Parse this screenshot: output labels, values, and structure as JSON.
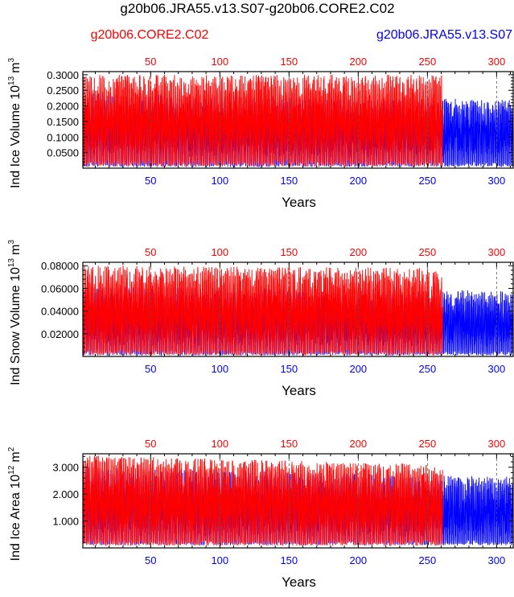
{
  "chart_data": {
    "type": "line",
    "title": "g20b06.JRA55.v13.S07-g20b06.CORE2.C02",
    "legend": {
      "left": {
        "label": "g20b06.CORE2.C02",
        "color": "#ff0000"
      },
      "right": {
        "label": "g20b06.JRA55.v13.S07",
        "color": "#0000ff"
      }
    },
    "series_colors": {
      "core2": "#ff0000",
      "jra55": "#0000ff"
    },
    "x_ticks": [
      50,
      100,
      150,
      200,
      250,
      300
    ],
    "panels": [
      {
        "name": "ind-ice-volume",
        "ylabel_main": "Ind Ice Volume 10",
        "ylabel_exp": "13",
        "ylabel_unit": "m",
        "ylabel_unit_exp": "3",
        "xlabel": "Years",
        "ylim": [
          0,
          0.31
        ],
        "yticks": [
          0.05,
          0.1,
          0.15,
          0.2,
          0.25,
          0.3
        ],
        "ytick_labels": [
          "0.0500",
          "0.1000",
          "0.1500",
          "0.2000",
          "0.2500",
          "0.3000"
        ],
        "grid_x": [
          50,
          100,
          150,
          200,
          250,
          300
        ],
        "series": [
          {
            "name": "g20b06.JRA55.v13.S07",
            "key": "jra55",
            "x_range": [
              1,
              312
            ],
            "min": 0.004,
            "max_early": 0.24,
            "max_late": 0.22
          },
          {
            "name": "g20b06.CORE2.C02",
            "key": "core2",
            "x_range": [
              1,
              261
            ],
            "min": 0.005,
            "max_early": 0.3,
            "max_late": 0.3
          }
        ]
      },
      {
        "name": "ind-snow-volume",
        "ylabel_main": "Ind Snow Volume 10",
        "ylabel_exp": "13",
        "ylabel_unit": "m",
        "ylabel_unit_exp": "3",
        "xlabel": "Years",
        "ylim": [
          0,
          0.083
        ],
        "yticks": [
          0.02,
          0.04,
          0.06,
          0.08
        ],
        "ytick_labels": [
          "0.02000",
          "0.04000",
          "0.06000",
          "0.08000"
        ],
        "grid_x": [
          50,
          100,
          150,
          200,
          250,
          300
        ],
        "series": [
          {
            "name": "g20b06.JRA55.v13.S07",
            "key": "jra55",
            "x_range": [
              1,
              312
            ],
            "min": 0.001,
            "max_early": 0.062,
            "max_late": 0.058
          },
          {
            "name": "g20b06.CORE2.C02",
            "key": "core2",
            "x_range": [
              1,
              261
            ],
            "min": 0.001,
            "max_early": 0.08,
            "max_late": 0.078
          }
        ]
      },
      {
        "name": "ind-ice-area",
        "ylabel_main": "Ind Ice Area 10",
        "ylabel_exp": "12",
        "ylabel_unit": "m",
        "ylabel_unit_exp": "2",
        "xlabel": "Years",
        "ylim": [
          0,
          3.5
        ],
        "yticks": [
          1,
          2,
          3
        ],
        "ytick_labels": [
          "1.000",
          "2.000",
          "3.000"
        ],
        "grid_x": [
          50,
          100,
          150,
          200,
          250,
          300
        ],
        "series": [
          {
            "name": "g20b06.JRA55.v13.S07",
            "key": "jra55",
            "x_range": [
              1,
              312
            ],
            "min": 0.1,
            "max_early": 3.0,
            "max_late": 2.65
          },
          {
            "name": "g20b06.CORE2.C02",
            "key": "core2",
            "x_range": [
              1,
              261
            ],
            "min": 0.08,
            "max_early": 3.45,
            "max_late": 3.1
          }
        ]
      }
    ],
    "xlim": [
      1,
      312
    ]
  }
}
